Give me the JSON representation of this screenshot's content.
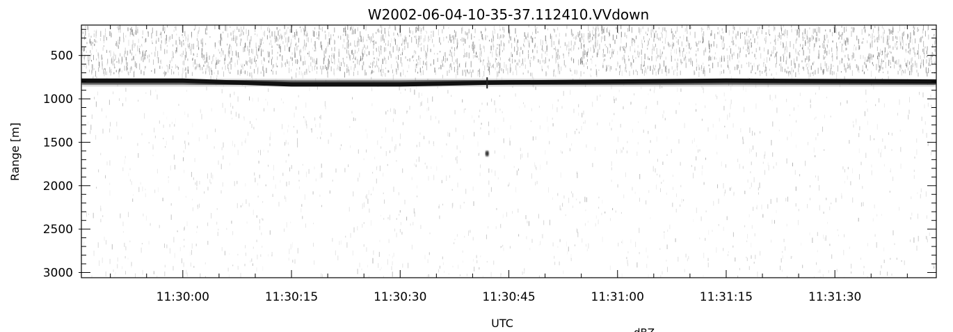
{
  "chart_data": {
    "type": "heatmap",
    "title": "W2002-06-04-10-35-37.112410.VVdown",
    "xlabel": "UTC",
    "ylabel": "Range [m]",
    "colorbar_label": "dBZ",
    "x_range": [
      "11:29:46",
      "11:31:44"
    ],
    "y_range": [
      150,
      3060
    ],
    "y_inverted": true,
    "x_ticks": [
      "11:30:00",
      "11:30:15",
      "11:30:30",
      "11:30:45",
      "11:31:00",
      "11:31:15",
      "11:31:30"
    ],
    "y_ticks": [
      500,
      1000,
      1500,
      2000,
      2500,
      3000
    ],
    "colormap": "grayscale (white = low, black = high)",
    "features": {
      "surface_echo": {
        "description": "dark continuous band",
        "profile": [
          {
            "time": "11:29:46",
            "range_m": 790
          },
          {
            "time": "11:30:00",
            "range_m": 790
          },
          {
            "time": "11:30:15",
            "range_m": 835
          },
          {
            "time": "11:30:30",
            "range_m": 835
          },
          {
            "time": "11:30:45",
            "range_m": 810
          },
          {
            "time": "11:31:00",
            "range_m": 800
          },
          {
            "time": "11:31:15",
            "range_m": 790
          },
          {
            "time": "11:31:30",
            "range_m": 795
          },
          {
            "time": "11:31:44",
            "range_m": 800
          }
        ]
      },
      "isolated_echo": {
        "time": "11:30:42",
        "range_m": 1630
      },
      "clutter_layer_range_m": [
        150,
        700
      ]
    }
  }
}
